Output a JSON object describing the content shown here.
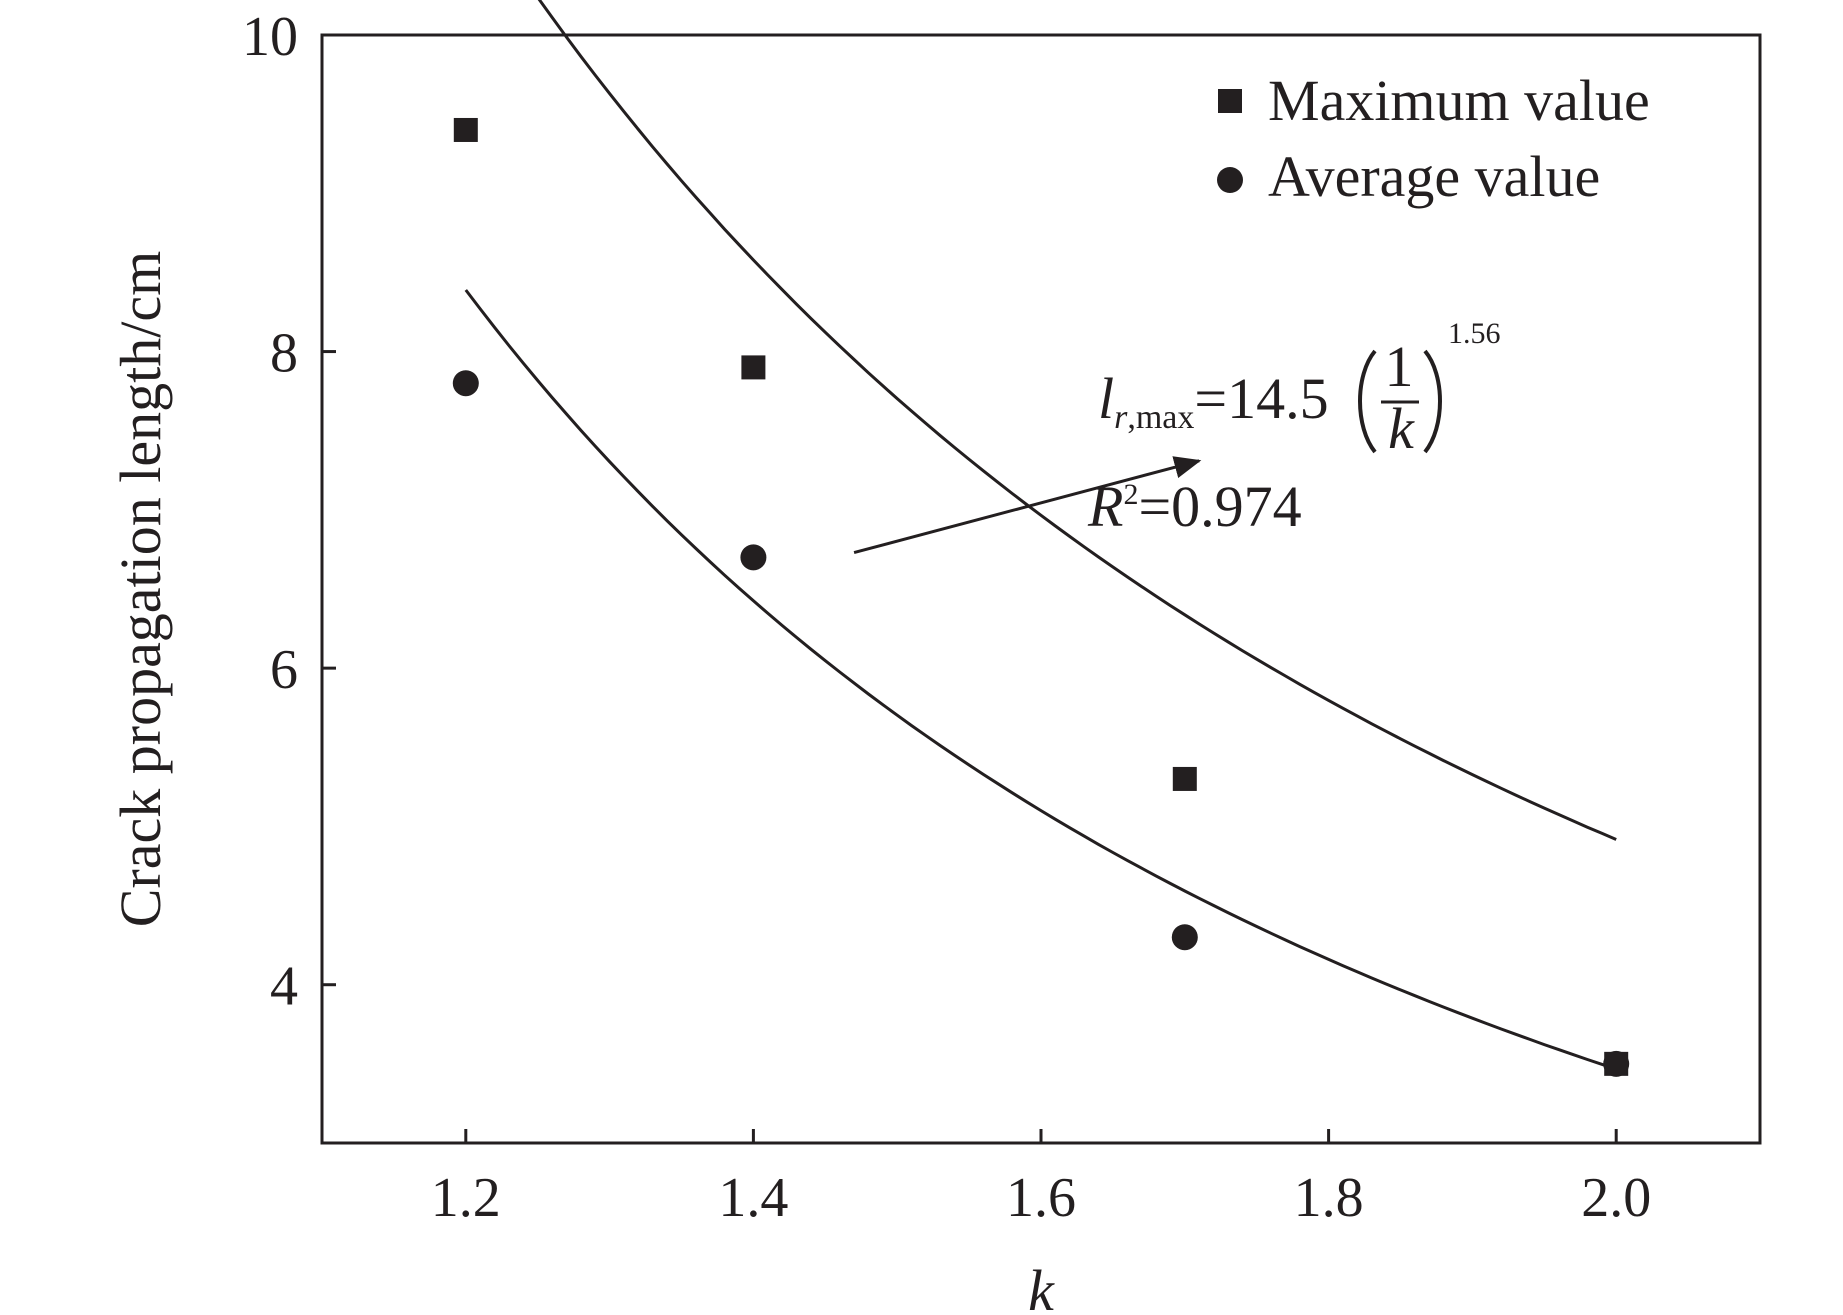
{
  "chart_data": {
    "type": "scatter",
    "title": "",
    "xlabel": "k",
    "ylabel": "Crack propagation length/cm",
    "xlim": [
      1.1,
      2.1
    ],
    "ylim": [
      3.0,
      10
    ],
    "x_ticks": [
      "1.2",
      "1.4",
      "1.6",
      "1.8",
      "2.0"
    ],
    "y_ticks": [
      "4",
      "6",
      "8",
      "10"
    ],
    "grid": false,
    "legend_position": "top-right",
    "series": [
      {
        "name": "Maximum value",
        "marker": "square",
        "color": "#231f20",
        "x": [
          1.2,
          1.4,
          1.7,
          2.0
        ],
        "y": [
          9.4,
          7.9,
          5.3,
          3.5
        ]
      },
      {
        "name": "Average value",
        "marker": "circle",
        "color": "#231f20",
        "x": [
          1.2,
          1.4,
          1.7,
          2.0
        ],
        "y": [
          7.8,
          6.7,
          4.3,
          3.5
        ]
      }
    ],
    "fits": [
      {
        "for": "Maximum value",
        "coefficient": 14.5,
        "exponent": 1.56,
        "x_range": [
          1.2,
          2.0
        ],
        "color": "#231f20"
      },
      {
        "for": "Average value",
        "coefficient": 11.5,
        "exponent": 1.73,
        "x_range": [
          1.2,
          2.0
        ],
        "color": "#231f20"
      }
    ],
    "annotation": {
      "var": "l",
      "sub_italic": "r",
      "sub_plain": ",max",
      "coef_text": "=14.5",
      "frac_num": "1",
      "frac_den": "k",
      "exponent_text": "1.56",
      "r2_var": "R",
      "r2_sup": "2",
      "r2_value": "=0.974",
      "arrow_from": [
        1.47,
        6.73
      ],
      "arrow_to": [
        1.71,
        7.31
      ]
    }
  }
}
